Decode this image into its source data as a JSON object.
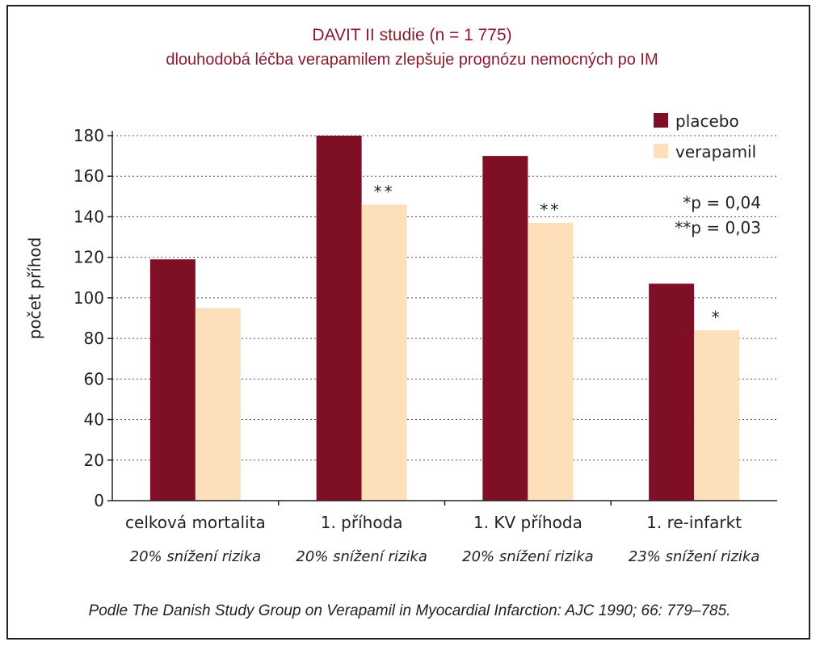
{
  "chart_data": {
    "type": "bar",
    "title": "DAVIT II studie (n = 1 775)",
    "subtitle": "dlouhodobá léčba verapamilem zlepšuje prognózu nemocných po IM",
    "ylabel": "počet příhod",
    "ylim": [
      0,
      180
    ],
    "yticks": [
      0,
      20,
      40,
      60,
      80,
      100,
      120,
      140,
      160,
      180
    ],
    "grid": true,
    "legend_position": "top-right",
    "categories": [
      "celková mortalita",
      "1. příhoda",
      "1. KV příhoda",
      "1. re-infarkt"
    ],
    "category_notes": [
      "20% snížení rizika",
      "20% snížení rizika",
      "20% snížení rizika",
      "23% snížení rizika"
    ],
    "series": [
      {
        "name": "placebo",
        "color": "#7e0f24",
        "values": [
          119,
          180,
          170,
          107
        ]
      },
      {
        "name": "verapamil",
        "color": "#fde0ba",
        "values": [
          95,
          146,
          137,
          84
        ],
        "annotations": [
          "",
          "**",
          "**",
          "*"
        ]
      }
    ],
    "significance": [
      "*p = 0,04",
      "**p = 0,03"
    ],
    "source": "Podle The Danish Study Group on Verapamil in Myocardial Infarction: AJC 1990; 66: 779–785."
  },
  "colors": {
    "title": "#8b1a2e",
    "axis": "#222222",
    "grid": "#555555"
  }
}
